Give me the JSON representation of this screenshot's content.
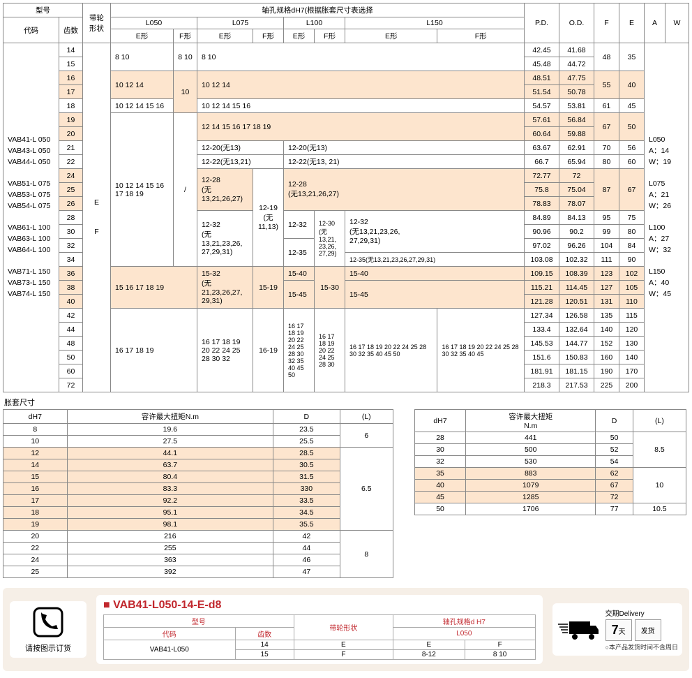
{
  "hdr": {
    "model": "型号",
    "pulley": "带轮形状",
    "shaft": "轴孔规格dH7(根据胀套尺寸表选择",
    "code": "代码",
    "teeth": "齿数",
    "l050": "L050",
    "l075": "L075",
    "l100": "L100",
    "l150": "L150",
    "e": "E形",
    "f": "F形",
    "pd": "P.D.",
    "od": "O.D.",
    "fh": "F",
    "eh": "E",
    "a": "A",
    "w": "W"
  },
  "codes": [
    "VAB41-L 050",
    "VAB43-L 050",
    "VAB44-L 050",
    "",
    "VAB51-L 075",
    "VAB53-L 075",
    "VAB54-L 075",
    "",
    "VAB61-L 100",
    "VAB63-L 100",
    "VAB64-L 100",
    "",
    "VAB71-L 150",
    "VAB73-L 150",
    "VAB74-L 150"
  ],
  "ef": "E\n\nF",
  "aw": [
    "L050",
    "A：14",
    "W：19",
    "",
    "L075",
    "A：21",
    "W：26",
    "",
    "L100",
    "A：27",
    "W：32",
    "",
    "L150",
    "A：40",
    "W：45"
  ],
  "rows": [
    {
      "t": "14",
      "c1": "8 10",
      "c1f": "8 10",
      "c2": "8 10",
      "pd": "42.45",
      "od": "41.68",
      "f": "48",
      "e": "35"
    },
    {
      "t": "15",
      "pd": "45.48",
      "od": "44.72"
    },
    {
      "t": "16",
      "hl": 1,
      "c1": "10 12 14",
      "c1f": "10",
      "c2": "10 12 14",
      "pd": "48.51",
      "od": "47.75",
      "f": "55",
      "e": "40"
    },
    {
      "t": "17",
      "hl": 1,
      "pd": "51.54",
      "od": "50.78"
    },
    {
      "t": "18",
      "c1": "10 12 14 15 16",
      "c2": "10 12 14 15 16",
      "pd": "54.57",
      "od": "53.81",
      "f": "61",
      "e": "45"
    },
    {
      "t": "19",
      "hl": 1,
      "c1": "10 12 14 15 16 17 18 19",
      "c1f": "/",
      "c2": "12 14 15 16 17 18 19",
      "pd": "57.61",
      "od": "56.84",
      "f": "67",
      "e": "50"
    },
    {
      "t": "20",
      "hl": 1,
      "pd": "60.64",
      "od": "59.88"
    },
    {
      "t": "21",
      "c2": "12-20(无13)",
      "c3": "12-20(无13)",
      "pd": "63.67",
      "od": "62.91",
      "f": "70",
      "e": "56"
    },
    {
      "t": "22",
      "c2": "12-22(无13,21)",
      "c3": "12-22(无13, 21)",
      "pd": "66.7",
      "od": "65.94",
      "f": "80",
      "e": "60"
    },
    {
      "t": "24",
      "hl": 1,
      "c2": "12-28\n(无13,21,26,27)",
      "c2f": "12-19\n(无11,13)",
      "c3": "12-28\n(无13,21,26,27)",
      "pd": "72.77",
      "od": "72",
      "f": "87",
      "e": "67"
    },
    {
      "t": "25",
      "hl": 1,
      "pd": "75.8",
      "od": "75.04"
    },
    {
      "t": "26",
      "hl": 1,
      "pd": "78.83",
      "od": "78.07"
    },
    {
      "t": "28",
      "c2": "12-32\n(无13,21,23,26,\n27,29,31)",
      "c3e": "12-32",
      "c3f": "12-30\n(无13,21,\n23,26,\n27,29)",
      "c4": "12-32\n(无13,21,23,26,\n27,29,31)",
      "pd": "84.89",
      "od": "84.13",
      "f": "95",
      "e": "75"
    },
    {
      "t": "30",
      "pd": "90.96",
      "od": "90.2",
      "f": "99",
      "e": "80"
    },
    {
      "t": "32",
      "c3e": "12-35",
      "pd": "97.02",
      "od": "96.26",
      "f": "104",
      "e": "84"
    },
    {
      "t": "34",
      "c4": "12-35(无13,21,23,26,27,29,31)",
      "pd": "103.08",
      "od": "102.32",
      "f": "111",
      "e": "90"
    },
    {
      "t": "36",
      "hl": 1,
      "c1": "15 16 17 18 19",
      "c2": "15-32\n(无21,23,26,27,\n29,31)",
      "c2f": "15-19",
      "c3e": "15-40",
      "c3f": "15-30",
      "c4": "15-40",
      "pd": "109.15",
      "od": "108.39",
      "f": "123",
      "e": "102"
    },
    {
      "t": "38",
      "hl": 1,
      "c3e": "15-45",
      "c4": "15-45",
      "pd": "115.21",
      "od": "114.45",
      "f": "127",
      "e": "105"
    },
    {
      "t": "40",
      "hl": 1,
      "pd": "121.28",
      "od": "120.51",
      "f": "131",
      "e": "110"
    },
    {
      "t": "42",
      "c1": "16 17 18 19",
      "c2": "16 17 18 19 20 22 24 25 28 30 32",
      "c2f": "16-19",
      "c3e": "16 17 18 19 20 22 24 25 28 30 32 35 40 45 50",
      "c3f": "16 17 18 19 20 22 24 25 28 30",
      "c4e": "16 17 18 19 20 22 24 25 28 30 32 35 40 45 50",
      "c4f": "16 17 18 19 20 22 24 25 28 30 32 35 40 45",
      "pd": "127.34",
      "od": "126.58",
      "f": "135",
      "e": "115"
    },
    {
      "t": "44",
      "pd": "133.4",
      "od": "132.64",
      "f": "140",
      "e": "120"
    },
    {
      "t": "48",
      "pd": "145.53",
      "od": "144.77",
      "f": "152",
      "e": "130"
    },
    {
      "t": "50",
      "pd": "151.6",
      "od": "150.83",
      "f": "160",
      "e": "140"
    },
    {
      "t": "60",
      "pd": "181.91",
      "od": "181.15",
      "f": "190",
      "e": "170"
    },
    {
      "t": "72",
      "pd": "218.3",
      "od": "217.53",
      "f": "225",
      "e": "200"
    }
  ],
  "bs": {
    "title": "胀套尺寸",
    "h": {
      "dh7": "dH7",
      "tq": "容许最大扭矩N.m",
      "d": "D",
      "l": "(L)"
    },
    "t1": [
      {
        "d": "8",
        "t": "19.6",
        "dd": "23.5",
        "l": "6"
      },
      {
        "d": "10",
        "t": "27.5",
        "dd": "25.5"
      },
      {
        "d": "12",
        "hl": 1,
        "t": "44.1",
        "dd": "28.5",
        "l": "6.5"
      },
      {
        "d": "14",
        "hl": 1,
        "t": "63.7",
        "dd": "30.5"
      },
      {
        "d": "15",
        "hl": 1,
        "t": "80.4",
        "dd": "31.5"
      },
      {
        "d": "16",
        "hl": 1,
        "t": "83.3",
        "dd": "330"
      },
      {
        "d": "17",
        "hl": 1,
        "t": "92.2",
        "dd": "33.5"
      },
      {
        "d": "18",
        "hl": 1,
        "t": "95.1",
        "dd": "34.5"
      },
      {
        "d": "19",
        "hl": 1,
        "t": "98.1",
        "dd": "35.5"
      },
      {
        "d": "20",
        "t": "216",
        "dd": "42",
        "l": "8"
      },
      {
        "d": "22",
        "t": "255",
        "dd": "44"
      },
      {
        "d": "24",
        "t": "363",
        "dd": "46"
      },
      {
        "d": "25",
        "t": "392",
        "dd": "47"
      }
    ],
    "t2h": {
      "dh7": "dH7",
      "tq": "容许最大扭矩\nN.m",
      "d": "D",
      "l": "(L)"
    },
    "t2": [
      {
        "d": "28",
        "t": "441",
        "dd": "50",
        "l": "8.5"
      },
      {
        "d": "30",
        "t": "500",
        "dd": "52"
      },
      {
        "d": "32",
        "t": "530",
        "dd": "54"
      },
      {
        "d": "35",
        "hl": 1,
        "t": "883",
        "dd": "62",
        "l": "10"
      },
      {
        "d": "40",
        "hl": 1,
        "t": "1079",
        "dd": "67"
      },
      {
        "d": "45",
        "hl": 1,
        "t": "1285",
        "dd": "72"
      },
      {
        "d": "50",
        "t": "1706",
        "dd": "77",
        "l": "10.5"
      }
    ]
  },
  "ord": {
    "call": "请按图示订货",
    "code": "VAB41-L050-14-E-d8",
    "h": {
      "model": "型号",
      "pulley": "带轮形状",
      "shaft": "轴孔规格d H7",
      "code": "代码",
      "teeth": "齿数",
      "l050": "L050",
      "e": "E",
      "f": "F"
    },
    "r": {
      "code": "VAB41-L050",
      "t1": "14",
      "t2": "15",
      "p1": "E",
      "p2": "F",
      "se": "E",
      "sf": "F",
      "v1": "8-12",
      "v2": "8 10"
    },
    "del": {
      "title": "交期Delivery",
      "num": "7",
      "day": "天",
      "ship": "发货",
      "note": "○本产品发货时间不含周日"
    }
  }
}
